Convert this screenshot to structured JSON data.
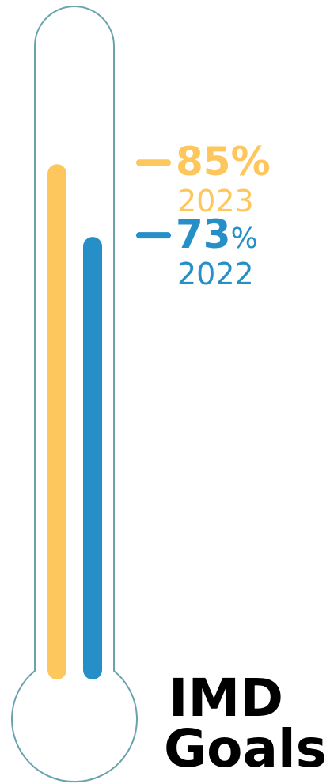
{
  "chart_data": {
    "type": "bar",
    "title_lines": [
      "IMD",
      "Goals"
    ],
    "categories": [
      "2023",
      "2022"
    ],
    "ylim": [
      0,
      100
    ],
    "series": [
      {
        "year": "2023",
        "value": 85,
        "value_text": "85%",
        "color": "#FDC75E"
      },
      {
        "year": "2022",
        "value": 73,
        "value_text": "73",
        "unit": "%",
        "color": "#268FC7"
      }
    ]
  },
  "colors": {
    "outline": "#6AA3AE",
    "gold": "#FDC75E",
    "blue": "#268FC7",
    "title": "#000000"
  }
}
